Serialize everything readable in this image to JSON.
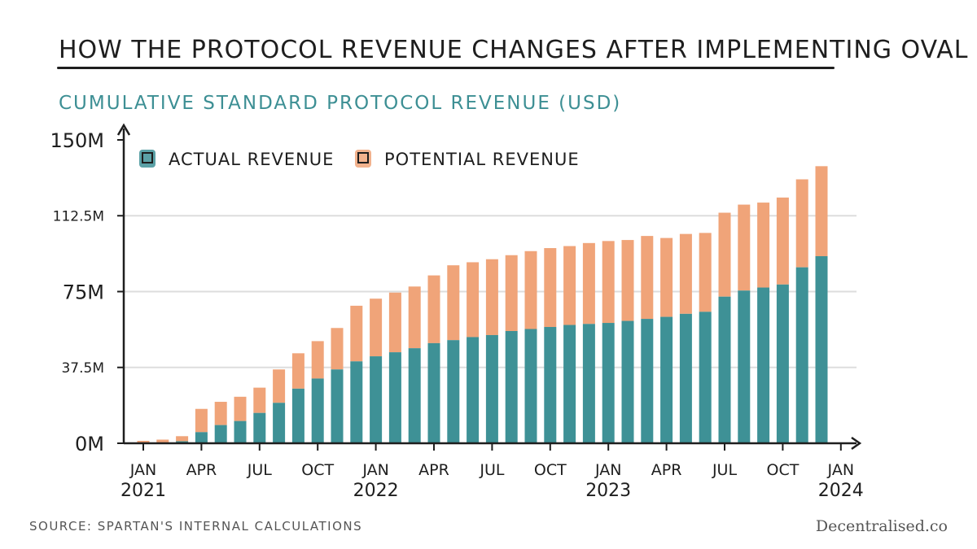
{
  "title": "HOW THE PROTOCOL REVENUE CHANGES AFTER IMPLEMENTING OVAL",
  "source": "SOURCE: SPARTAN'S INTERNAL CALCULATIONS",
  "brand": "Decentralised.co",
  "colors": {
    "actual": "#3e9196",
    "potential": "#f0a479",
    "axis": "#1e1e1e",
    "title": "#3d8f94",
    "grid": "#dddddd"
  },
  "chart_data": {
    "type": "bar",
    "stacked": true,
    "title": "CUMULATIVE STANDARD PROTOCOL REVENUE (USD)",
    "ylabel": "",
    "xlabel": "",
    "ylim": [
      0,
      150
    ],
    "unit": "M USD",
    "yticks": [
      {
        "value": 0,
        "label": "0M"
      },
      {
        "value": 37.5,
        "label": "37.5M"
      },
      {
        "value": 75,
        "label": "75M"
      },
      {
        "value": 112.5,
        "label": "112.5M"
      },
      {
        "value": 150,
        "label": "150M"
      }
    ],
    "xticks": [
      {
        "index": 0,
        "label": "JAN",
        "year": "2021"
      },
      {
        "index": 3,
        "label": "APR"
      },
      {
        "index": 6,
        "label": "JUL"
      },
      {
        "index": 9,
        "label": "OCT"
      },
      {
        "index": 12,
        "label": "JAN",
        "year": "2022"
      },
      {
        "index": 15,
        "label": "APR"
      },
      {
        "index": 18,
        "label": "JUL"
      },
      {
        "index": 21,
        "label": "OCT"
      },
      {
        "index": 24,
        "label": "JAN",
        "year": "2023"
      },
      {
        "index": 27,
        "label": "APR"
      },
      {
        "index": 30,
        "label": "JUL"
      },
      {
        "index": 33,
        "label": "OCT"
      },
      {
        "index": 36,
        "label": "JAN",
        "year": "2024"
      }
    ],
    "legend_position": "top-left",
    "series": [
      {
        "name": "ACTUAL REVENUE",
        "values": [
          0.2,
          0.3,
          1.0,
          5.5,
          9.0,
          11.0,
          15.0,
          20.0,
          27.0,
          32.0,
          36.5,
          40.5,
          43.0,
          45.0,
          47.0,
          49.5,
          51.0,
          52.5,
          53.5,
          55.5,
          56.5,
          57.5,
          58.5,
          59.0,
          59.5,
          60.5,
          61.5,
          62.5,
          64.0,
          65.0,
          72.5,
          75.5,
          77.0,
          78.5,
          87.0,
          92.5
        ]
      },
      {
        "name": "POTENTIAL REVENUE",
        "values": [
          1.0,
          1.5,
          2.5,
          11.5,
          11.5,
          12.0,
          12.5,
          16.5,
          17.5,
          18.5,
          20.5,
          27.5,
          28.5,
          29.5,
          30.5,
          33.5,
          37.0,
          37.0,
          37.5,
          37.5,
          38.5,
          39.0,
          39.0,
          40.0,
          40.5,
          40.0,
          41.0,
          39.0,
          39.5,
          39.0,
          41.5,
          42.5,
          42.0,
          43.0,
          43.5,
          44.5
        ]
      }
    ]
  }
}
